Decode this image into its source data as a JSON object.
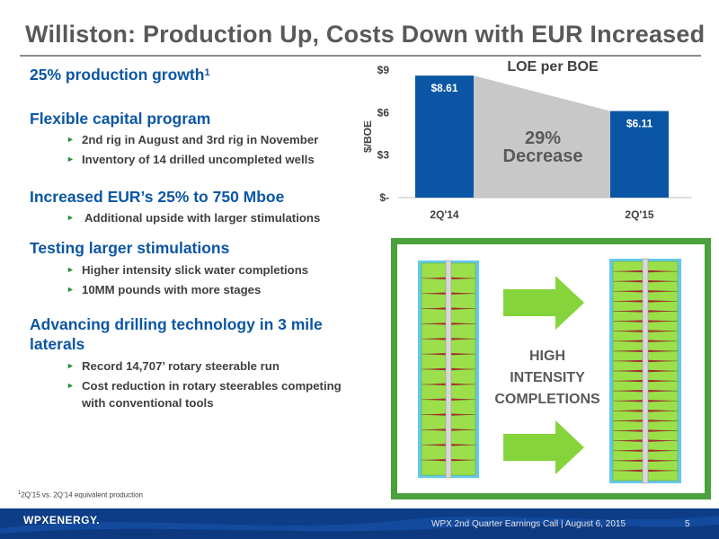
{
  "slide": {
    "title": "Williston:  Production Up, Costs Down with EUR Increased",
    "footnote_marker": "1",
    "footnote": "2Q’15 vs. 2Q’14 equivalent production"
  },
  "bullets": {
    "b1": {
      "text": "25% production growth",
      "sup": "1"
    },
    "b2": {
      "text": "Flexible capital program",
      "subs": [
        "2nd rig in August and 3rd rig in November",
        "Inventory of 14 drilled uncompleted wells"
      ]
    },
    "b3": {
      "text": "Increased EUR’s 25% to 750 Mboe",
      "subs": [
        "Additional upside with larger stimulations"
      ]
    },
    "b4": {
      "text": "Testing larger stimulations",
      "subs": [
        "Higher intensity slick water completions",
        "10MM pounds with more stages"
      ]
    },
    "b5": {
      "text": "Advancing drilling technology in 3 mile laterals",
      "subs": [
        "Record 14,707’ rotary steerable run",
        "Cost reduction in rotary steerables competing with conventional tools"
      ]
    }
  },
  "chart_data": {
    "type": "bar",
    "title": "LOE per BOE",
    "ylabel": "$/BOE",
    "categories": [
      "2Q'14",
      "2Q'15"
    ],
    "values": [
      8.61,
      6.11
    ],
    "value_labels": [
      "$8.61",
      "$6.11"
    ],
    "yticks": [
      "$-",
      "$3",
      "$6",
      "$9"
    ],
    "ylim": [
      0,
      9
    ],
    "annotation": {
      "line1": "29%",
      "line2": "Decrease"
    },
    "bar_color": "#0b56a4",
    "band_color": "#c8c8c8"
  },
  "graphic": {
    "label_lines": [
      "HIGH",
      "INTENSITY",
      "COMPLETIONS"
    ],
    "frame_color": "#4aa23c",
    "stage_color": "#9be04a",
    "fracture_color": "#62c9ee",
    "arrow_color": "#86d43c"
  },
  "footer": {
    "logo": "WPXENERGY.",
    "text": "WPX 2nd Quarter Earnings Call  |  August 6, 2015",
    "page": "5"
  }
}
